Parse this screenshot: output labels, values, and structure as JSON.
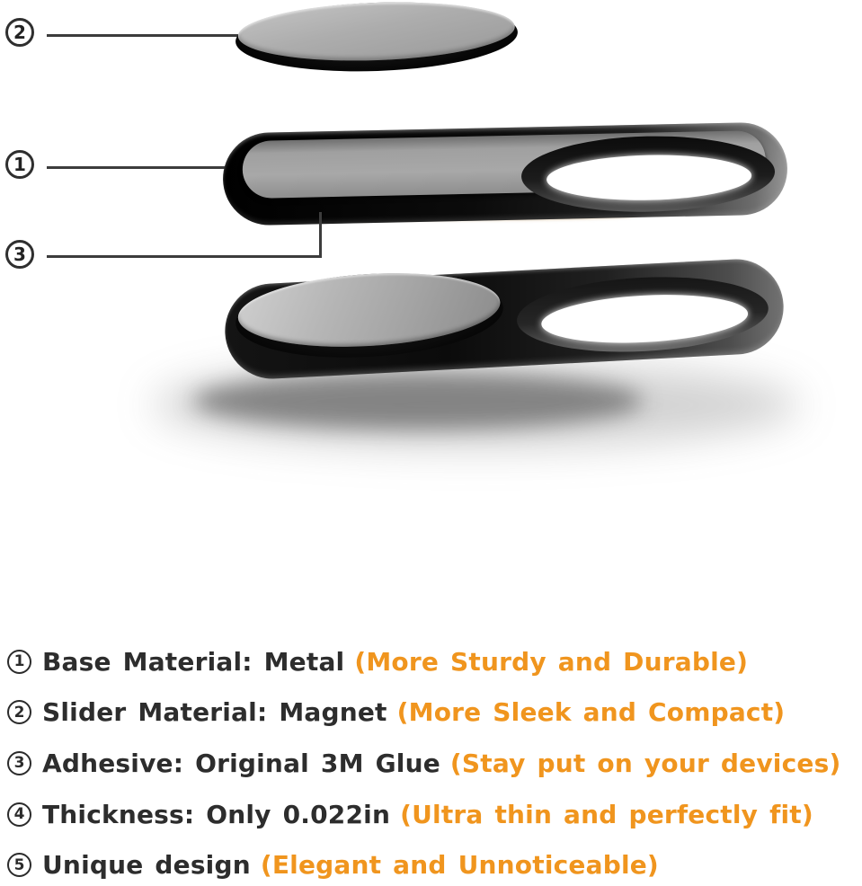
{
  "colors": {
    "background": "#ffffff",
    "text": "#2d2d2d",
    "highlight_orange": "#f0951e",
    "callout_line": "#3c3c3c",
    "adhesive_tan": "#bf985f"
  },
  "diagram": {
    "callouts": [
      {
        "num": "2"
      },
      {
        "num": "1"
      },
      {
        "num": "3"
      }
    ],
    "icons": [
      "slider-disc-icon",
      "base-tray-icon",
      "adhesive-edge-icon",
      "assembled-cover-icon"
    ]
  },
  "features": [
    {
      "num": "1",
      "label": "Base Material: Metal",
      "highlight": "(More Sturdy and Durable)"
    },
    {
      "num": "2",
      "label": "Slider Material: Magnet",
      "highlight": "(More Sleek and Compact)"
    },
    {
      "num": "3",
      "label": "Adhesive: Original 3M Glue",
      "highlight": "(Stay put on your devices)"
    },
    {
      "num": "4",
      "label": "Thickness: Only 0.022in",
      "highlight": "(Ultra thin and perfectly fit)"
    },
    {
      "num": "5",
      "label": "Unique design",
      "highlight": "(Elegant and Unnoticeable)"
    }
  ]
}
